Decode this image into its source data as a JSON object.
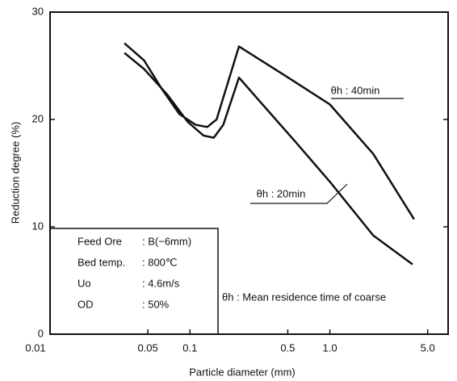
{
  "chart_data": {
    "type": "line",
    "xlabel": "Particle diameter (mm)",
    "ylabel": "Reduction degree (%)",
    "xscale": "log",
    "xlim": [
      0.01,
      7
    ],
    "ylim": [
      0,
      30
    ],
    "xticks": [
      0.01,
      0.05,
      0.1,
      0.5,
      {
        "value": 1,
        "label": "1.0"
      },
      {
        "value": 5,
        "label": "5.0"
      }
    ],
    "yticks": [
      0,
      10,
      20,
      30
    ],
    "series": [
      {
        "name": "θh : 40min",
        "color": "#111111",
        "x": [
          0.034,
          0.047,
          0.0625,
          0.084,
          0.11,
          0.133,
          0.155,
          0.224,
          0.49,
          1.0,
          2.04,
          4.0
        ],
        "values": [
          27.1,
          25.5,
          22.9,
          20.5,
          19.5,
          19.3,
          20.0,
          26.8,
          24.0,
          21.4,
          16.8,
          10.7
        ]
      },
      {
        "name": "θh : 20min",
        "color": "#111111",
        "x": [
          0.034,
          0.047,
          0.069,
          0.096,
          0.125,
          0.148,
          0.173,
          0.224,
          0.33,
          0.56,
          1.0,
          2.04,
          3.9
        ],
        "values": [
          26.2,
          24.7,
          22.3,
          19.8,
          18.5,
          18.3,
          19.5,
          23.9,
          21.4,
          18.0,
          14.2,
          9.2,
          6.5
        ]
      }
    ],
    "conditions": [
      {
        "label": "Feed Ore",
        "value": ": B(−6mm)"
      },
      {
        "label": "Bed temp.",
        "value": ": 800℃"
      },
      {
        "label": "Uo",
        "value": ": 4.6m/s"
      },
      {
        "label": "OD",
        "value": ": 50%"
      }
    ],
    "note": "θh : Mean residence time of coarse"
  }
}
